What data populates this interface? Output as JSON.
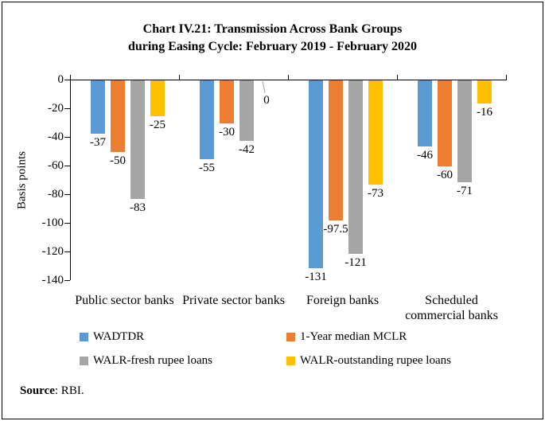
{
  "chart_data": {
    "type": "bar",
    "title_lines": [
      "Chart IV.21: Transmission Across Bank Groups",
      "during Easing Cycle: February 2019 - February 2020"
    ],
    "ylabel": "Basis points",
    "categories": [
      "Public sector banks",
      "Private sector banks",
      "Foreign banks",
      "Scheduled commercial banks"
    ],
    "categories_display": [
      [
        "Public sector banks"
      ],
      [
        "Private sector banks"
      ],
      [
        "Foreign banks"
      ],
      [
        "Scheduled",
        "commercial banks"
      ]
    ],
    "series": [
      {
        "name": "WADTDR",
        "color": "#5B9BD5",
        "values": [
          -37,
          -55,
          -131,
          -46
        ]
      },
      {
        "name": "1-Year median MCLR",
        "color": "#ED7D31",
        "values": [
          -50,
          -30,
          -97.5,
          -60
        ]
      },
      {
        "name": "WALR-fresh rupee loans",
        "color": "#A5A5A5",
        "values": [
          -83,
          -42,
          -121,
          -71
        ]
      },
      {
        "name": "WALR-outstanding rupee loans",
        "color": "#FFC000",
        "values": [
          -25,
          0,
          -73,
          -16
        ]
      }
    ],
    "ylim": [
      0,
      -140
    ],
    "yticks": [
      0,
      -20,
      -40,
      -60,
      -80,
      -100,
      -120,
      -140
    ],
    "grid": false,
    "legend_position": "bottom",
    "axis_color": "#000000"
  },
  "source": {
    "bold": "Source",
    "rest": ": RBI."
  }
}
